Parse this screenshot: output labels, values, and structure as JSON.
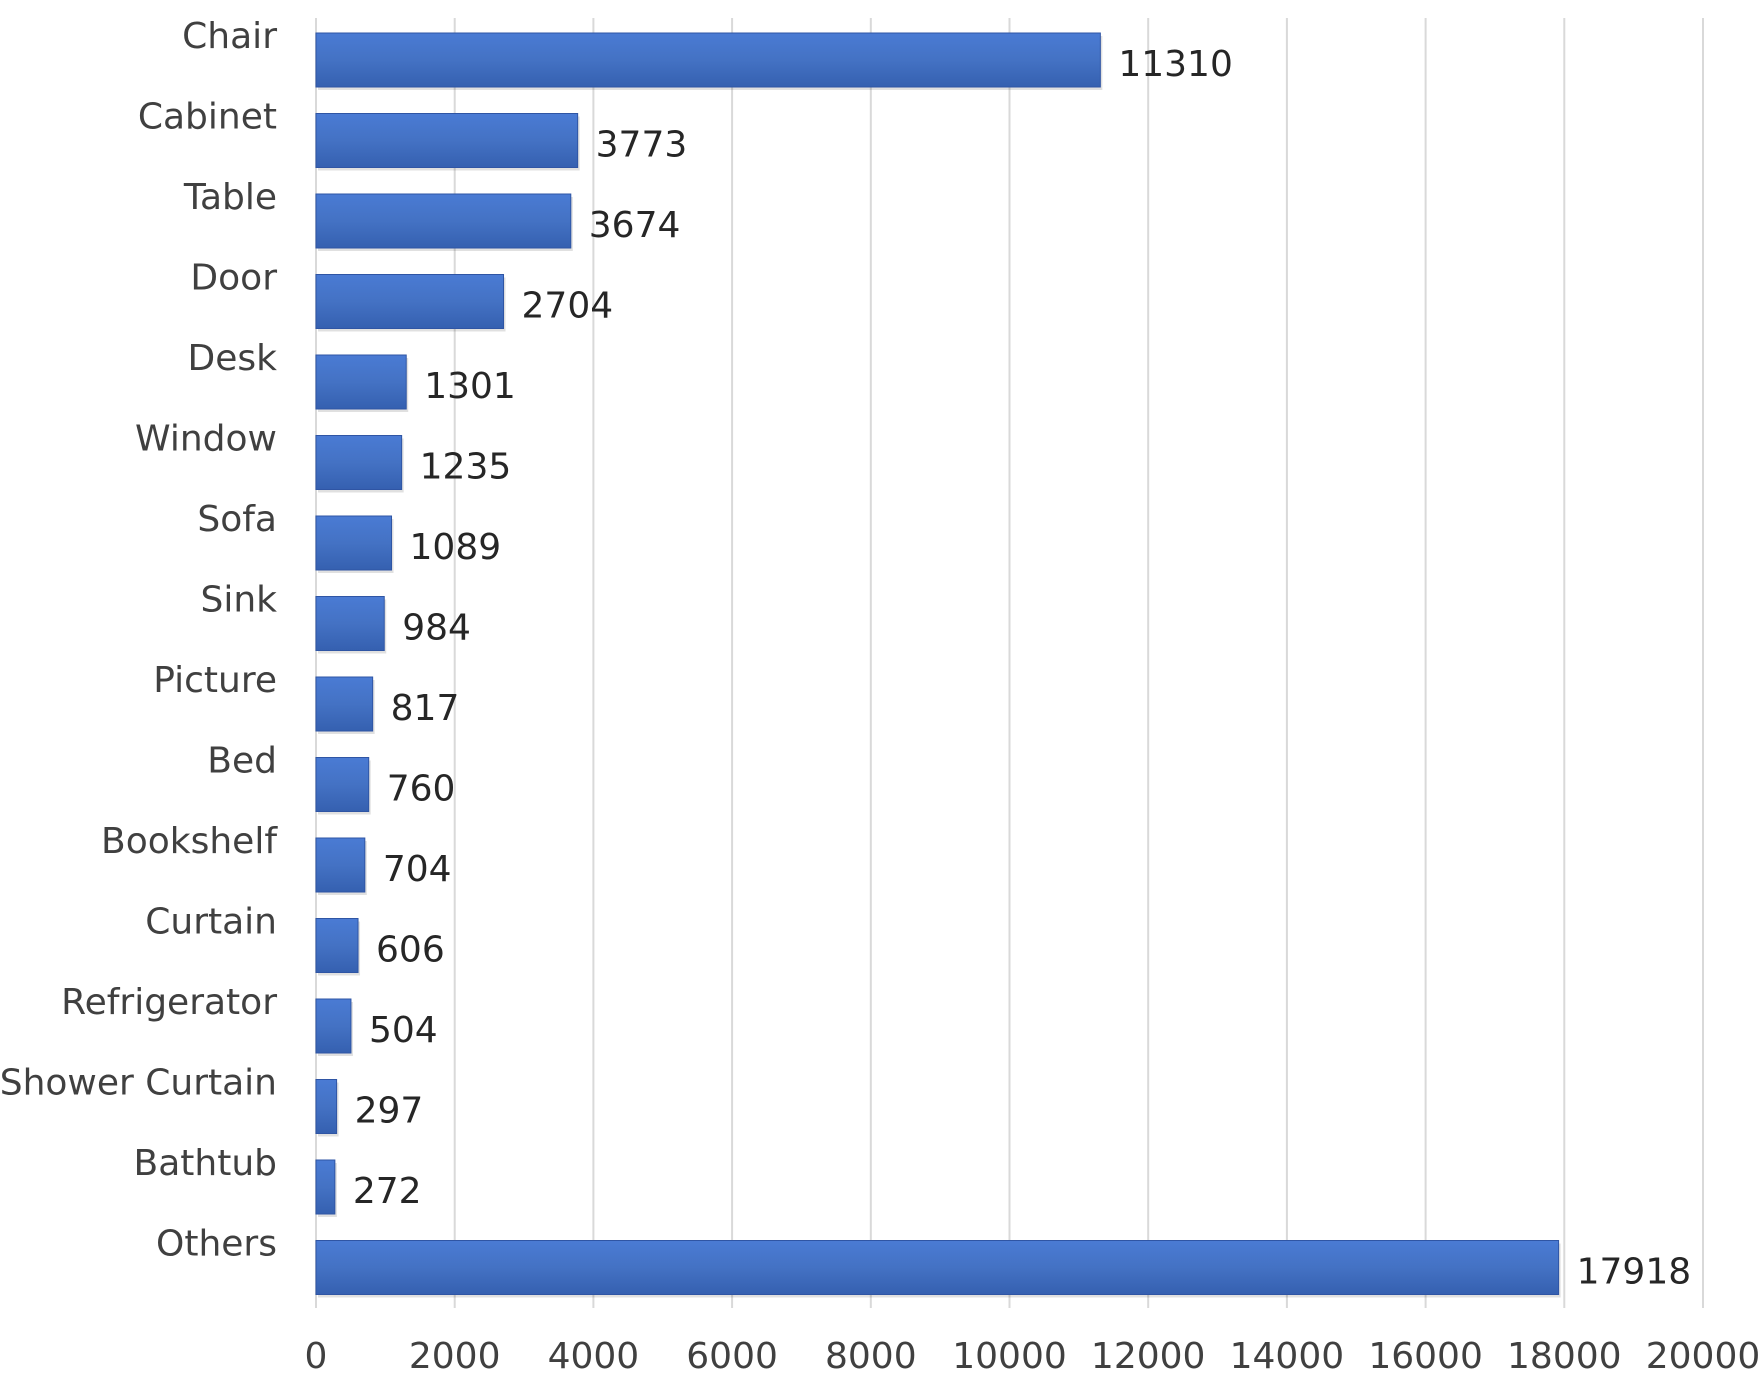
{
  "chart_data": {
    "type": "bar",
    "orientation": "horizontal",
    "title": "",
    "xlabel": "",
    "ylabel": "",
    "categories": [
      "Chair",
      "Cabinet",
      "Table",
      "Door",
      "Desk",
      "Window",
      "Sofa",
      "Sink",
      "Picture",
      "Bed",
      "Bookshelf",
      "Curtain",
      "Refrigerator",
      "Shower Curtain",
      "Bathtub",
      "Others"
    ],
    "values": [
      11310,
      3773,
      3674,
      2704,
      1301,
      1235,
      1089,
      984,
      817,
      760,
      704,
      606,
      504,
      297,
      272,
      17918
    ],
    "xlim": [
      0,
      20000
    ],
    "ticks": [
      0,
      2000,
      4000,
      6000,
      8000,
      10000,
      12000,
      14000,
      16000,
      18000,
      20000
    ],
    "tick_labels": [
      "0",
      "2000",
      "4000",
      "6000",
      "8000",
      "10000",
      "12000",
      "14000",
      "16000",
      "18000",
      "20000"
    ],
    "grid": "vertical",
    "legend": "none",
    "data_labels": true,
    "colors": {
      "bar": "#4472c4",
      "bar_dark": "#2f55a4",
      "bar_light": "#5b86d6",
      "grid": "#d9d9d9",
      "text": "#404040"
    }
  }
}
